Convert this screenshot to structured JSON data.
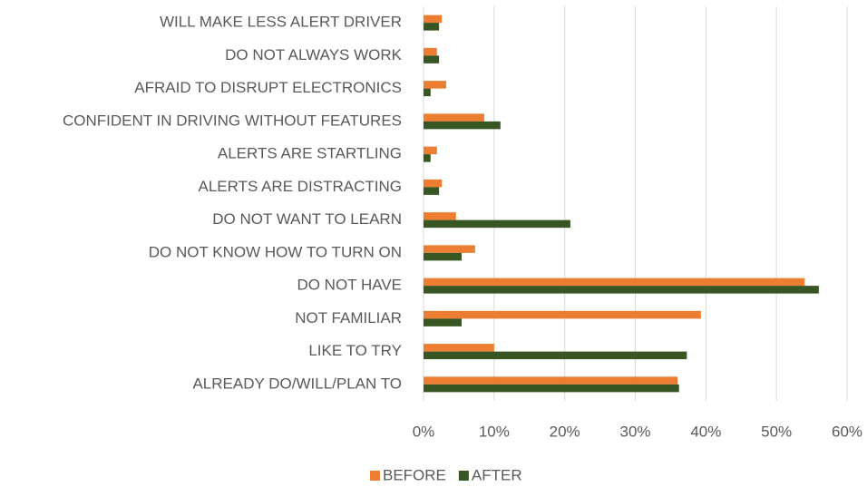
{
  "chart_data": {
    "type": "bar",
    "orientation": "horizontal",
    "categories": [
      "WILL MAKE LESS ALERT DRIVER",
      "DO NOT ALWAYS WORK",
      "AFRAID TO DISRUPT ELECTRONICS",
      "CONFIDENT IN DRIVING WITHOUT FEATURES",
      "ALERTS ARE STARTLING",
      "ALERTS ARE DISTRACTING",
      "DO NOT WANT TO LEARN",
      "DO NOT KNOW HOW TO TURN ON",
      "DO NOT HAVE",
      "NOT FAMILIAR",
      "LIKE TO TRY",
      "ALREADY DO/WILL/PLAN TO"
    ],
    "series": [
      {
        "name": "BEFORE",
        "color": "#ed7d31",
        "values": [
          2.6,
          1.9,
          3.2,
          8.6,
          1.9,
          2.6,
          4.6,
          7.3,
          54,
          39.3,
          10,
          36
        ]
      },
      {
        "name": "AFTER",
        "color": "#375623",
        "values": [
          2.2,
          2.2,
          1.0,
          10.9,
          1.0,
          2.2,
          20.8,
          5.4,
          56,
          5.4,
          37.3,
          36.2
        ]
      }
    ],
    "xlim": [
      0,
      60
    ],
    "xticks": [
      {
        "value": 0,
        "label": "0%"
      },
      {
        "value": 10,
        "label": "10%"
      },
      {
        "value": 20,
        "label": "20%"
      },
      {
        "value": 30,
        "label": "30%"
      },
      {
        "value": 40,
        "label": "40%"
      },
      {
        "value": 50,
        "label": "50%"
      },
      {
        "value": 60,
        "label": "60%"
      }
    ],
    "grid": true,
    "legend": "bottom"
  }
}
